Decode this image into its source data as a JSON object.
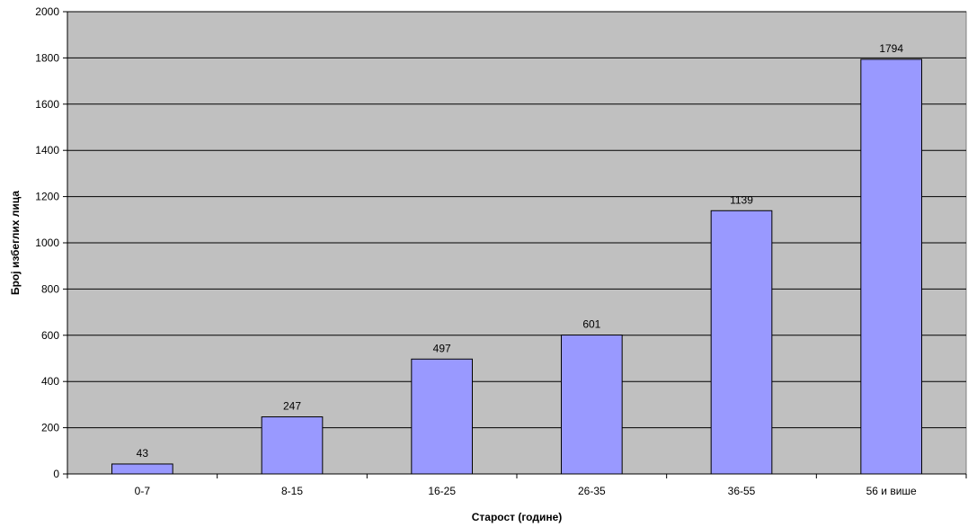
{
  "chart_data": {
    "type": "bar",
    "title": "",
    "xlabel": "Старост  (године)",
    "ylabel": "Број избеглих лица",
    "categories": [
      "0-7",
      "8-15",
      "16-25",
      "26-35",
      "36-55",
      "56 и више"
    ],
    "values": [
      43,
      247,
      497,
      601,
      1139,
      1794
    ],
    "data_labels": [
      "43",
      "247",
      "497",
      "601",
      "1139",
      "1794"
    ],
    "ylim": [
      0,
      2000
    ],
    "yticks": [
      0,
      200,
      400,
      600,
      800,
      1000,
      1200,
      1400,
      1600,
      1800,
      2000
    ],
    "grid": true,
    "legend": "none",
    "colors": {
      "plot_background": "#c0c0c0",
      "bar_fill": "#9999ff",
      "bar_stroke": "#000000",
      "gridline": "#000000"
    }
  }
}
